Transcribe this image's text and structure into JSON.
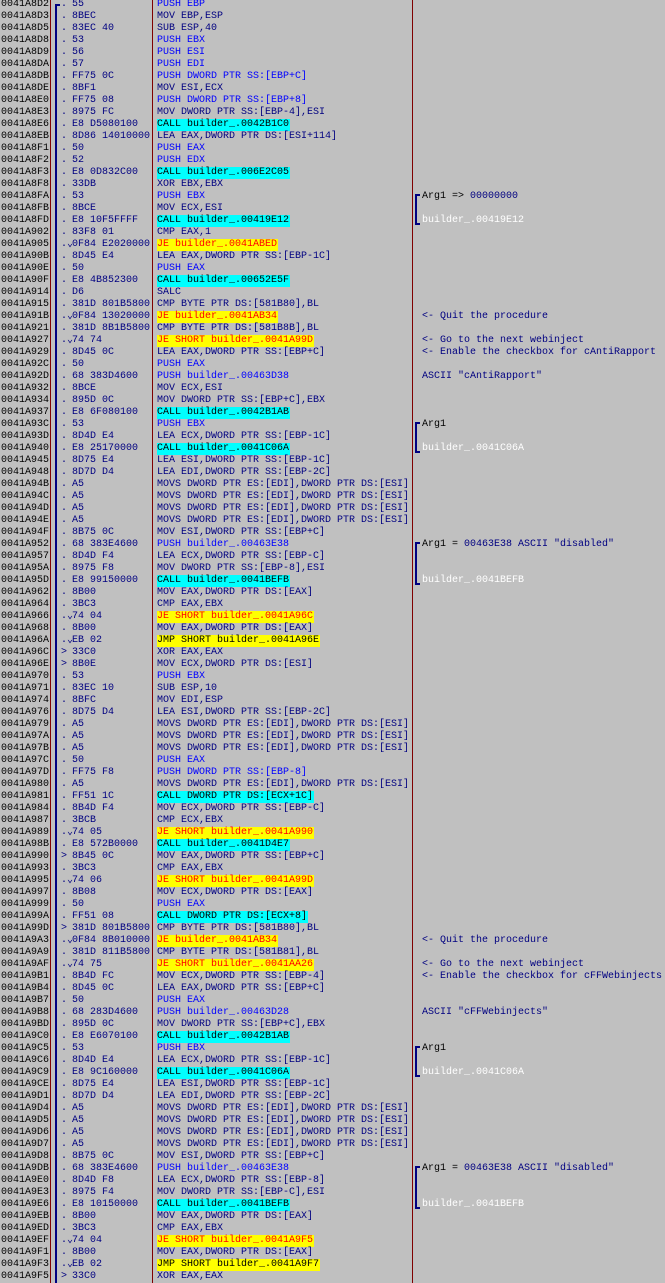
{
  "window": {
    "view": "CPU disassembly"
  },
  "colors": {
    "background": "#C0C0C0",
    "text": "#000080",
    "push": "#0000FF",
    "call_bg": "#00FFFF",
    "jump_bg": "#FFFF00",
    "conditional_jump_text": "#FF0000",
    "column_separator": "#800000"
  },
  "rows": [
    {
      "addr": "0041A8D2",
      "mark": ".",
      "hex": "55",
      "dis": "PUSH EBP",
      "kind": "push"
    },
    {
      "addr": "0041A8D3",
      "mark": ".",
      "hex": "8BEC",
      "dis": "MOV EBP,ESP",
      "kind": "normal"
    },
    {
      "addr": "0041A8D5",
      "mark": ".",
      "hex": "83EC 40",
      "dis": "SUB ESP,40",
      "kind": "normal"
    },
    {
      "addr": "0041A8D8",
      "mark": ".",
      "hex": "53",
      "dis": "PUSH EBX",
      "kind": "push"
    },
    {
      "addr": "0041A8D9",
      "mark": ".",
      "hex": "56",
      "dis": "PUSH ESI",
      "kind": "push"
    },
    {
      "addr": "0041A8DA",
      "mark": ".",
      "hex": "57",
      "dis": "PUSH EDI",
      "kind": "push"
    },
    {
      "addr": "0041A8DB",
      "mark": ".",
      "hex": "FF75 0C",
      "dis": "PUSH DWORD PTR SS:[EBP+C]",
      "kind": "push"
    },
    {
      "addr": "0041A8DE",
      "mark": ".",
      "hex": "8BF1",
      "dis": "MOV ESI,ECX",
      "kind": "normal"
    },
    {
      "addr": "0041A8E0",
      "mark": ".",
      "hex": "FF75 08",
      "dis": "PUSH DWORD PTR SS:[EBP+8]",
      "kind": "push"
    },
    {
      "addr": "0041A8E3",
      "mark": ".",
      "hex": "8975 FC",
      "dis": "MOV DWORD PTR SS:[EBP-4],ESI",
      "kind": "normal"
    },
    {
      "addr": "0041A8E6",
      "mark": ".",
      "hex": "E8 D5080100",
      "dis": "CALL builder_.0042B1C0",
      "kind": "call"
    },
    {
      "addr": "0041A8EB",
      "mark": ".",
      "hex": "8D86 14010000",
      "dis": "LEA EAX,DWORD PTR DS:[ESI+114]",
      "kind": "normal"
    },
    {
      "addr": "0041A8F1",
      "mark": ".",
      "hex": "50",
      "dis": "PUSH EAX",
      "kind": "push"
    },
    {
      "addr": "0041A8F2",
      "mark": ".",
      "hex": "52",
      "dis": "PUSH EDX",
      "kind": "push"
    },
    {
      "addr": "0041A8F3",
      "mark": ".",
      "hex": "E8 0D832C00",
      "dis": "CALL builder_.006E2C05",
      "kind": "call"
    },
    {
      "addr": "0041A8F8",
      "mark": ".",
      "hex": "33DB",
      "dis": "XOR EBX,EBX",
      "kind": "normal"
    },
    {
      "addr": "0041A8FA",
      "mark": ".",
      "hex": "53",
      "dis": "PUSH EBX",
      "kind": "push",
      "c_label": "Arg1 => ",
      "c_navy": "00000000"
    },
    {
      "addr": "0041A8FB",
      "mark": ".",
      "hex": "8BCE",
      "dis": "MOV ECX,ESI",
      "kind": "normal"
    },
    {
      "addr": "0041A8FD",
      "mark": ".",
      "hex": "E8 10F5FFFF",
      "dis": "CALL builder_.00419E12",
      "kind": "call",
      "c_white": "builder_.00419E12"
    },
    {
      "addr": "0041A902",
      "mark": ".",
      "hex": "83F8 01",
      "dis": "CMP EAX,1",
      "kind": "normal"
    },
    {
      "addr": "0041A905",
      "mark": ".⌄",
      "hex": "0F84 E2020000",
      "dis": "JE builder_.0041ABED",
      "kind": "jcc"
    },
    {
      "addr": "0041A90B",
      "mark": ".",
      "hex": "8D45 E4",
      "dis": "LEA EAX,DWORD PTR SS:[EBP-1C]",
      "kind": "normal"
    },
    {
      "addr": "0041A90E",
      "mark": ".",
      "hex": "50",
      "dis": "PUSH EAX",
      "kind": "push"
    },
    {
      "addr": "0041A90F",
      "mark": ".",
      "hex": "E8 4B852300",
      "dis": "CALL builder_.00652E5F",
      "kind": "call"
    },
    {
      "addr": "0041A914",
      "mark": ".",
      "hex": "D6",
      "dis": "SALC",
      "kind": "normal"
    },
    {
      "addr": "0041A915",
      "mark": ".",
      "hex": "381D 801B5800",
      "dis": "CMP BYTE PTR DS:[581B80],BL",
      "kind": "normal"
    },
    {
      "addr": "0041A91B",
      "mark": ".⌄",
      "hex": "0F84 13020000",
      "dis": "JE builder_.0041AB34",
      "kind": "jcc",
      "c_navy": "<- Quit the procedure"
    },
    {
      "addr": "0041A921",
      "mark": ".",
      "hex": "381D 8B1B5800",
      "dis": "CMP BYTE PTR DS:[581B8B],BL",
      "kind": "normal"
    },
    {
      "addr": "0041A927",
      "mark": ".⌄",
      "hex": "74 74",
      "dis": "JE SHORT builder_.0041A99D",
      "kind": "jcc",
      "c_navy": "<- Go to the next webinject"
    },
    {
      "addr": "0041A929",
      "mark": ".",
      "hex": "8D45 0C",
      "dis": "LEA EAX,DWORD PTR SS:[EBP+C]",
      "kind": "normal",
      "c_navy": "<- Enable the checkbox for cAntiRapport"
    },
    {
      "addr": "0041A92C",
      "mark": ".",
      "hex": "50",
      "dis": "PUSH EAX",
      "kind": "push"
    },
    {
      "addr": "0041A92D",
      "mark": ".",
      "hex": "68 383D4600",
      "dis": "PUSH builder_.00463D38",
      "kind": "push",
      "c_navy": "ASCII \"cAntiRapport\""
    },
    {
      "addr": "0041A932",
      "mark": ".",
      "hex": "8BCE",
      "dis": "MOV ECX,ESI",
      "kind": "normal"
    },
    {
      "addr": "0041A934",
      "mark": ".",
      "hex": "895D 0C",
      "dis": "MOV DWORD PTR SS:[EBP+C],EBX",
      "kind": "normal"
    },
    {
      "addr": "0041A937",
      "mark": ".",
      "hex": "E8 6F080100",
      "dis": "CALL builder_.0042B1AB",
      "kind": "call"
    },
    {
      "addr": "0041A93C",
      "mark": ".",
      "hex": "53",
      "dis": "PUSH EBX",
      "kind": "push",
      "c_label": "Arg1"
    },
    {
      "addr": "0041A93D",
      "mark": ".",
      "hex": "8D4D E4",
      "dis": "LEA ECX,DWORD PTR SS:[EBP-1C]",
      "kind": "normal"
    },
    {
      "addr": "0041A940",
      "mark": ".",
      "hex": "E8 25170000",
      "dis": "CALL builder_.0041C06A",
      "kind": "call",
      "c_white": "builder_.0041C06A"
    },
    {
      "addr": "0041A945",
      "mark": ".",
      "hex": "8D75 E4",
      "dis": "LEA ESI,DWORD PTR SS:[EBP-1C]",
      "kind": "normal"
    },
    {
      "addr": "0041A948",
      "mark": ".",
      "hex": "8D7D D4",
      "dis": "LEA EDI,DWORD PTR SS:[EBP-2C]",
      "kind": "normal"
    },
    {
      "addr": "0041A94B",
      "mark": ".",
      "hex": "A5",
      "dis": "MOVS DWORD PTR ES:[EDI],DWORD PTR DS:[ESI]",
      "kind": "normal"
    },
    {
      "addr": "0041A94C",
      "mark": ".",
      "hex": "A5",
      "dis": "MOVS DWORD PTR ES:[EDI],DWORD PTR DS:[ESI]",
      "kind": "normal"
    },
    {
      "addr": "0041A94D",
      "mark": ".",
      "hex": "A5",
      "dis": "MOVS DWORD PTR ES:[EDI],DWORD PTR DS:[ESI]",
      "kind": "normal"
    },
    {
      "addr": "0041A94E",
      "mark": ".",
      "hex": "A5",
      "dis": "MOVS DWORD PTR ES:[EDI],DWORD PTR DS:[ESI]",
      "kind": "normal"
    },
    {
      "addr": "0041A94F",
      "mark": ".",
      "hex": "8B75 0C",
      "dis": "MOV ESI,DWORD PTR SS:[EBP+C]",
      "kind": "normal"
    },
    {
      "addr": "0041A952",
      "mark": ".",
      "hex": "68 383E4600",
      "dis": "PUSH builder_.00463E38",
      "kind": "push",
      "c_label": "Arg1 = ",
      "c_navy": "00463E38 ASCII \"disabled\""
    },
    {
      "addr": "0041A957",
      "mark": ".",
      "hex": "8D4D F4",
      "dis": "LEA ECX,DWORD PTR SS:[EBP-C]",
      "kind": "normal"
    },
    {
      "addr": "0041A95A",
      "mark": ".",
      "hex": "8975 F8",
      "dis": "MOV DWORD PTR SS:[EBP-8],ESI",
      "kind": "normal"
    },
    {
      "addr": "0041A95D",
      "mark": ".",
      "hex": "E8 99150000",
      "dis": "CALL builder_.0041BEFB",
      "kind": "call",
      "c_white": "builder_.0041BEFB"
    },
    {
      "addr": "0041A962",
      "mark": ".",
      "hex": "8B00",
      "dis": "MOV EAX,DWORD PTR DS:[EAX]",
      "kind": "normal"
    },
    {
      "addr": "0041A964",
      "mark": ".",
      "hex": "3BC3",
      "dis": "CMP EAX,EBX",
      "kind": "normal"
    },
    {
      "addr": "0041A966",
      "mark": ".⌄",
      "hex": "74 04",
      "dis": "JE SHORT builder_.0041A96C",
      "kind": "jcc"
    },
    {
      "addr": "0041A968",
      "mark": ".",
      "hex": "8B00",
      "dis": "MOV EAX,DWORD PTR DS:[EAX]",
      "kind": "normal"
    },
    {
      "addr": "0041A96A",
      "mark": ".⌄",
      "hex": "EB 02",
      "dis": "JMP SHORT builder_.0041A96E",
      "kind": "jmp"
    },
    {
      "addr": "0041A96C",
      "mark": ">",
      "hex": "33C0",
      "dis": "XOR EAX,EAX",
      "kind": "normal"
    },
    {
      "addr": "0041A96E",
      "mark": ">",
      "hex": "8B0E",
      "dis": "MOV ECX,DWORD PTR DS:[ESI]",
      "kind": "normal"
    },
    {
      "addr": "0041A970",
      "mark": ".",
      "hex": "53",
      "dis": "PUSH EBX",
      "kind": "push"
    },
    {
      "addr": "0041A971",
      "mark": ".",
      "hex": "83EC 10",
      "dis": "SUB ESP,10",
      "kind": "normal"
    },
    {
      "addr": "0041A974",
      "mark": ".",
      "hex": "8BFC",
      "dis": "MOV EDI,ESP",
      "kind": "normal"
    },
    {
      "addr": "0041A976",
      "mark": ".",
      "hex": "8D75 D4",
      "dis": "LEA ESI,DWORD PTR SS:[EBP-2C]",
      "kind": "normal"
    },
    {
      "addr": "0041A979",
      "mark": ".",
      "hex": "A5",
      "dis": "MOVS DWORD PTR ES:[EDI],DWORD PTR DS:[ESI]",
      "kind": "normal"
    },
    {
      "addr": "0041A97A",
      "mark": ".",
      "hex": "A5",
      "dis": "MOVS DWORD PTR ES:[EDI],DWORD PTR DS:[ESI]",
      "kind": "normal"
    },
    {
      "addr": "0041A97B",
      "mark": ".",
      "hex": "A5",
      "dis": "MOVS DWORD PTR ES:[EDI],DWORD PTR DS:[ESI]",
      "kind": "normal"
    },
    {
      "addr": "0041A97C",
      "mark": ".",
      "hex": "50",
      "dis": "PUSH EAX",
      "kind": "push"
    },
    {
      "addr": "0041A97D",
      "mark": ".",
      "hex": "FF75 F8",
      "dis": "PUSH DWORD PTR SS:[EBP-8]",
      "kind": "push"
    },
    {
      "addr": "0041A980",
      "mark": ".",
      "hex": "A5",
      "dis": "MOVS DWORD PTR ES:[EDI],DWORD PTR DS:[ESI]",
      "kind": "normal"
    },
    {
      "addr": "0041A981",
      "mark": ".",
      "hex": "FF51 1C",
      "dis": "CALL DWORD PTR DS:[ECX+1C]",
      "kind": "call"
    },
    {
      "addr": "0041A984",
      "mark": ".",
      "hex": "8B4D F4",
      "dis": "MOV ECX,DWORD PTR SS:[EBP-C]",
      "kind": "normal"
    },
    {
      "addr": "0041A987",
      "mark": ".",
      "hex": "3BCB",
      "dis": "CMP ECX,EBX",
      "kind": "normal"
    },
    {
      "addr": "0041A989",
      "mark": ".⌄",
      "hex": "74 05",
      "dis": "JE SHORT builder_.0041A990",
      "kind": "jcc"
    },
    {
      "addr": "0041A98B",
      "mark": ".",
      "hex": "E8 572B0000",
      "dis": "CALL builder_.0041D4E7",
      "kind": "call"
    },
    {
      "addr": "0041A990",
      "mark": ">",
      "hex": "8B45 0C",
      "dis": "MOV EAX,DWORD PTR SS:[EBP+C]",
      "kind": "normal"
    },
    {
      "addr": "0041A993",
      "mark": ".",
      "hex": "3BC3",
      "dis": "CMP EAX,EBX",
      "kind": "normal"
    },
    {
      "addr": "0041A995",
      "mark": ".⌄",
      "hex": "74 06",
      "dis": "JE SHORT builder_.0041A99D",
      "kind": "jcc"
    },
    {
      "addr": "0041A997",
      "mark": ".",
      "hex": "8B08",
      "dis": "MOV ECX,DWORD PTR DS:[EAX]",
      "kind": "normal"
    },
    {
      "addr": "0041A999",
      "mark": ".",
      "hex": "50",
      "dis": "PUSH EAX",
      "kind": "push"
    },
    {
      "addr": "0041A99A",
      "mark": ".",
      "hex": "FF51 08",
      "dis": "CALL DWORD PTR DS:[ECX+8]",
      "kind": "call"
    },
    {
      "addr": "0041A99D",
      "mark": ">",
      "hex": "381D 801B5800",
      "dis": "CMP BYTE PTR DS:[581B80],BL",
      "kind": "normal"
    },
    {
      "addr": "0041A9A3",
      "mark": ".⌄",
      "hex": "0F84 8B010000",
      "dis": "JE builder_.0041AB34",
      "kind": "jcc",
      "c_navy": "<- Quit the procedure"
    },
    {
      "addr": "0041A9A9",
      "mark": ".",
      "hex": "381D 811B5800",
      "dis": "CMP BYTE PTR DS:[581B81],BL",
      "kind": "normal"
    },
    {
      "addr": "0041A9AF",
      "mark": ".⌄",
      "hex": "74 75",
      "dis": "JE SHORT builder_.0041AA26",
      "kind": "jcc",
      "c_navy": "<- Go to the next webinject"
    },
    {
      "addr": "0041A9B1",
      "mark": ".",
      "hex": "8B4D FC",
      "dis": "MOV ECX,DWORD PTR SS:[EBP-4]",
      "kind": "normal",
      "c_navy": "<- Enable the checkbox for cFFWebinjects"
    },
    {
      "addr": "0041A9B4",
      "mark": ".",
      "hex": "8D45 0C",
      "dis": "LEA EAX,DWORD PTR SS:[EBP+C]",
      "kind": "normal"
    },
    {
      "addr": "0041A9B7",
      "mark": ".",
      "hex": "50",
      "dis": "PUSH EAX",
      "kind": "push"
    },
    {
      "addr": "0041A9B8",
      "mark": ".",
      "hex": "68 283D4600",
      "dis": "PUSH builder_.00463D28",
      "kind": "push",
      "c_navy": "ASCII \"cFFWebinjects\""
    },
    {
      "addr": "0041A9BD",
      "mark": ".",
      "hex": "895D 0C",
      "dis": "MOV DWORD PTR SS:[EBP+C],EBX",
      "kind": "normal"
    },
    {
      "addr": "0041A9C0",
      "mark": ".",
      "hex": "E8 E6070100",
      "dis": "CALL builder_.0042B1AB",
      "kind": "call"
    },
    {
      "addr": "0041A9C5",
      "mark": ".",
      "hex": "53",
      "dis": "PUSH EBX",
      "kind": "push",
      "c_label": "Arg1"
    },
    {
      "addr": "0041A9C6",
      "mark": ".",
      "hex": "8D4D E4",
      "dis": "LEA ECX,DWORD PTR SS:[EBP-1C]",
      "kind": "normal"
    },
    {
      "addr": "0041A9C9",
      "mark": ".",
      "hex": "E8 9C160000",
      "dis": "CALL builder_.0041C06A",
      "kind": "call",
      "c_white": "builder_.0041C06A"
    },
    {
      "addr": "0041A9CE",
      "mark": ".",
      "hex": "8D75 E4",
      "dis": "LEA ESI,DWORD PTR SS:[EBP-1C]",
      "kind": "normal"
    },
    {
      "addr": "0041A9D1",
      "mark": ".",
      "hex": "8D7D D4",
      "dis": "LEA EDI,DWORD PTR SS:[EBP-2C]",
      "kind": "normal"
    },
    {
      "addr": "0041A9D4",
      "mark": ".",
      "hex": "A5",
      "dis": "MOVS DWORD PTR ES:[EDI],DWORD PTR DS:[ESI]",
      "kind": "normal"
    },
    {
      "addr": "0041A9D5",
      "mark": ".",
      "hex": "A5",
      "dis": "MOVS DWORD PTR ES:[EDI],DWORD PTR DS:[ESI]",
      "kind": "normal"
    },
    {
      "addr": "0041A9D6",
      "mark": ".",
      "hex": "A5",
      "dis": "MOVS DWORD PTR ES:[EDI],DWORD PTR DS:[ESI]",
      "kind": "normal"
    },
    {
      "addr": "0041A9D7",
      "mark": ".",
      "hex": "A5",
      "dis": "MOVS DWORD PTR ES:[EDI],DWORD PTR DS:[ESI]",
      "kind": "normal"
    },
    {
      "addr": "0041A9D8",
      "mark": ".",
      "hex": "8B75 0C",
      "dis": "MOV ESI,DWORD PTR SS:[EBP+C]",
      "kind": "normal"
    },
    {
      "addr": "0041A9DB",
      "mark": ".",
      "hex": "68 383E4600",
      "dis": "PUSH builder_.00463E38",
      "kind": "push",
      "c_label": "Arg1 = ",
      "c_navy": "00463E38 ASCII \"disabled\""
    },
    {
      "addr": "0041A9E0",
      "mark": ".",
      "hex": "8D4D F8",
      "dis": "LEA ECX,DWORD PTR SS:[EBP-8]",
      "kind": "normal"
    },
    {
      "addr": "0041A9E3",
      "mark": ".",
      "hex": "8975 F4",
      "dis": "MOV DWORD PTR SS:[EBP-C],ESI",
      "kind": "normal"
    },
    {
      "addr": "0041A9E6",
      "mark": ".",
      "hex": "E8 10150000",
      "dis": "CALL builder_.0041BEFB",
      "kind": "call",
      "c_white": "builder_.0041BEFB"
    },
    {
      "addr": "0041A9EB",
      "mark": ".",
      "hex": "8B00",
      "dis": "MOV EAX,DWORD PTR DS:[EAX]",
      "kind": "normal"
    },
    {
      "addr": "0041A9ED",
      "mark": ".",
      "hex": "3BC3",
      "dis": "CMP EAX,EBX",
      "kind": "normal"
    },
    {
      "addr": "0041A9EF",
      "mark": ".⌄",
      "hex": "74 04",
      "dis": "JE SHORT builder_.0041A9F5",
      "kind": "jcc"
    },
    {
      "addr": "0041A9F1",
      "mark": ".",
      "hex": "8B00",
      "dis": "MOV EAX,DWORD PTR DS:[EAX]",
      "kind": "normal"
    },
    {
      "addr": "0041A9F3",
      "mark": ".⌄",
      "hex": "EB 02",
      "dis": "JMP SHORT builder_.0041A9F7",
      "kind": "jmp"
    },
    {
      "addr": "0041A9F5",
      "mark": ">",
      "hex": "33C0",
      "dis": "XOR EAX,EAX",
      "kind": "normal"
    }
  ],
  "arg_groups": [
    [
      "0041A8FA",
      "0041A8FD"
    ],
    [
      "0041A93C",
      "0041A940"
    ],
    [
      "0041A952",
      "0041A95D"
    ],
    [
      "0041A9C5",
      "0041A9C9"
    ],
    [
      "0041A9DB",
      "0041A9E6"
    ]
  ]
}
